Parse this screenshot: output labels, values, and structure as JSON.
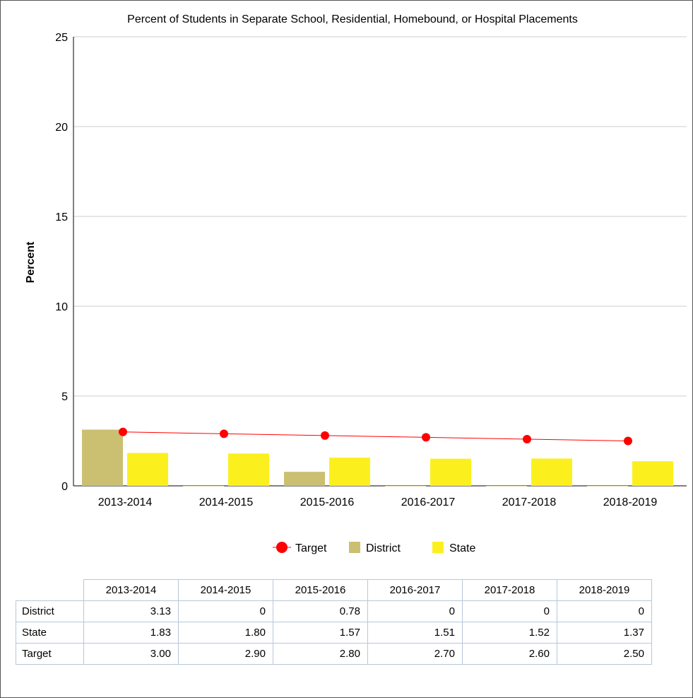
{
  "chart_data": {
    "type": "bar",
    "title": "Percent of Students in Separate School, Residential, Homebound, or Hospital Placements",
    "ylabel": "Percent",
    "xlabel": "",
    "ylim": [
      0,
      25
    ],
    "yticks": [
      0,
      5,
      10,
      15,
      20,
      25
    ],
    "grid": true,
    "categories": [
      "2013-2014",
      "2014-2015",
      "2015-2016",
      "2016-2017",
      "2017-2018",
      "2018-2019"
    ],
    "series": [
      {
        "name": "Target",
        "type": "line",
        "color": "#ff0000",
        "values": [
          3.0,
          2.9,
          2.8,
          2.7,
          2.6,
          2.5
        ]
      },
      {
        "name": "District",
        "type": "bar",
        "color": "#cbbf72",
        "values": [
          3.13,
          0,
          0.78,
          0,
          0,
          0
        ]
      },
      {
        "name": "State",
        "type": "bar",
        "color": "#fbf01e",
        "values": [
          1.83,
          1.8,
          1.57,
          1.51,
          1.52,
          1.37
        ]
      }
    ],
    "legend": {
      "position": "bottom",
      "entries": [
        "Target",
        "District",
        "State"
      ]
    },
    "table": {
      "columns": [
        "2013-2014",
        "2014-2015",
        "2015-2016",
        "2016-2017",
        "2017-2018",
        "2018-2019"
      ],
      "rows": [
        {
          "label": "District",
          "cells": [
            "3.13",
            "0",
            "0.78",
            "0",
            "0",
            "0"
          ]
        },
        {
          "label": "State",
          "cells": [
            "1.83",
            "1.80",
            "1.57",
            "1.51",
            "1.52",
            "1.37"
          ]
        },
        {
          "label": "Target",
          "cells": [
            "3.00",
            "2.90",
            "2.80",
            "2.70",
            "2.60",
            "2.50"
          ]
        }
      ]
    }
  }
}
